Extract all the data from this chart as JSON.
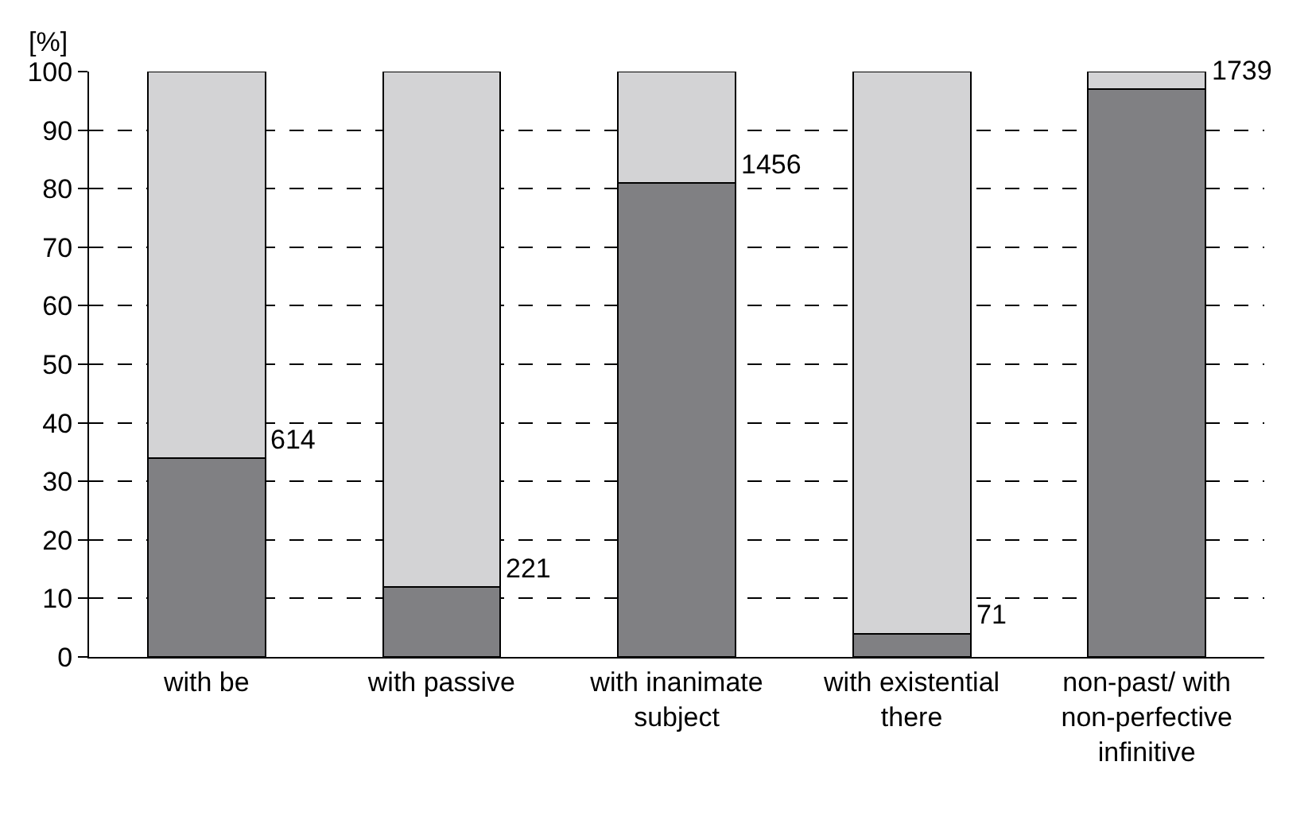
{
  "chart_data": {
    "type": "bar",
    "stacked": true,
    "ylabel": "[%]",
    "categories": [
      "with be",
      "with passive",
      "with inanimate subject",
      "with existential there",
      "non-past/ with non-perfective infinitive"
    ],
    "series": [
      {
        "color": "#808083",
        "values": [
          34,
          12,
          81,
          4,
          97
        ]
      },
      {
        "color": "#d3d3d5",
        "values": [
          66,
          88,
          19,
          96,
          3
        ]
      }
    ],
    "ylim": [
      0,
      100
    ],
    "yticks": [
      0,
      10,
      20,
      30,
      40,
      50,
      60,
      70,
      80,
      90,
      100
    ],
    "grid": "y",
    "annotations": [
      {
        "text": "614",
        "x": "with be",
        "y": 34
      },
      {
        "text": "221",
        "x": "with passive",
        "y": 12
      },
      {
        "text": "1456",
        "x": "with inanimate subject",
        "y": 81
      },
      {
        "text": "71",
        "x": "with existential there",
        "y": 4
      },
      {
        "text": "1739",
        "x": "non-past/ with non-perfective infinitive",
        "y": 97
      }
    ]
  }
}
